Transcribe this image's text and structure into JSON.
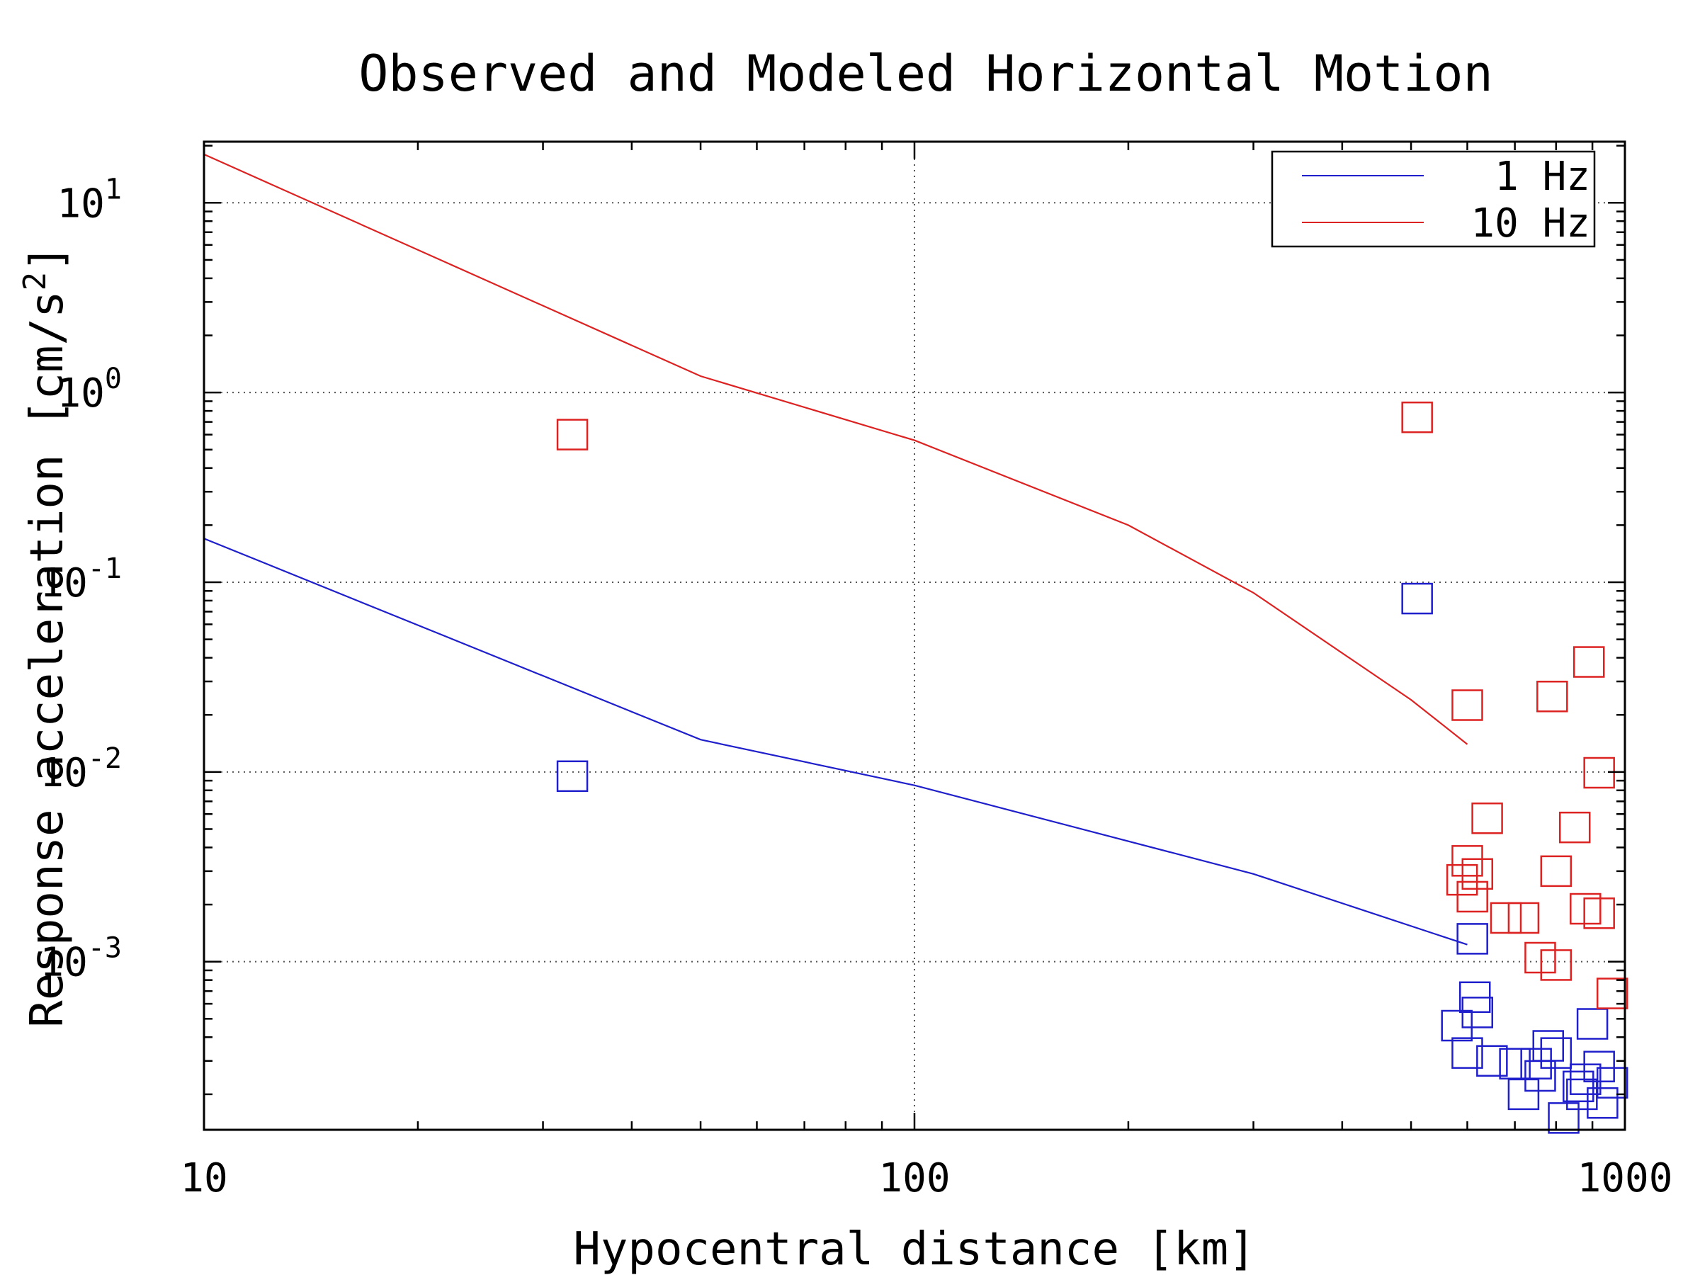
{
  "chart_data": {
    "type": "scatter",
    "title": "Observed and Modeled Horizontal Motion",
    "xlabel": "Hypocentral distance [km]",
    "ylabel_base": "Response acceleration [cm/s",
    "ylabel_sup": "2",
    "ylabel_end": "]",
    "xscale": "log",
    "yscale": "log",
    "xlim": [
      10,
      1000
    ],
    "ylim": [
      0.00013,
      21
    ],
    "grid": true,
    "legend_position": "top-right",
    "x_ticks": [
      {
        "value": 10,
        "label": "10"
      },
      {
        "value": 100,
        "label": "100"
      },
      {
        "value": 1000,
        "label": "1000"
      }
    ],
    "y_ticks": [
      {
        "value": 0.001,
        "base": "10",
        "exp": "-3"
      },
      {
        "value": 0.01,
        "base": "10",
        "exp": "-2"
      },
      {
        "value": 0.1,
        "base": "10",
        "exp": "-1"
      },
      {
        "value": 1,
        "base": "10",
        "exp": "0"
      },
      {
        "value": 10,
        "base": "10",
        "exp": "1"
      }
    ],
    "series": [
      {
        "name": "1 Hz",
        "color": "#1f1fcc",
        "line": {
          "x": [
            10,
            50,
            100,
            300,
            600
          ],
          "y": [
            0.17,
            0.0148,
            0.0085,
            0.0029,
            0.00123
          ]
        },
        "points": {
          "x": [
            33,
            510,
            610,
            580,
            600,
            620,
            615,
            650,
            700,
            720,
            750,
            760,
            780,
            800,
            820,
            860,
            880,
            900,
            920,
            960,
            930,
            870
          ],
          "y": [
            0.0095,
            0.082,
            0.00132,
            0.00046,
            0.00033,
            0.00054,
            0.00065,
            0.0003,
            0.00029,
            0.0002,
            0.00029,
            0.00025,
            0.00036,
            0.00033,
            0.00015,
            0.00022,
            0.00024,
            0.00047,
            0.00028,
            0.00023,
            0.00018,
            0.0002
          ]
        }
      },
      {
        "name": "10 Hz",
        "color": "#dd2222",
        "line": {
          "x": [
            10,
            50,
            100,
            200,
            300,
            500,
            600
          ],
          "y": [
            18,
            1.22,
            0.56,
            0.2,
            0.088,
            0.024,
            0.014
          ]
        },
        "points": {
          "x": [
            33,
            510,
            600,
            890,
            790,
            920,
            640,
            850,
            600,
            590,
            620,
            610,
            680,
            720,
            800,
            880,
            920,
            760,
            800,
            960
          ],
          "y": [
            0.6,
            0.74,
            0.0225,
            0.038,
            0.025,
            0.0099,
            0.0057,
            0.0051,
            0.0034,
            0.0027,
            0.0029,
            0.0022,
            0.0017,
            0.0017,
            0.003,
            0.0019,
            0.0018,
            0.00105,
            0.00096,
            0.00068
          ]
        }
      }
    ]
  }
}
